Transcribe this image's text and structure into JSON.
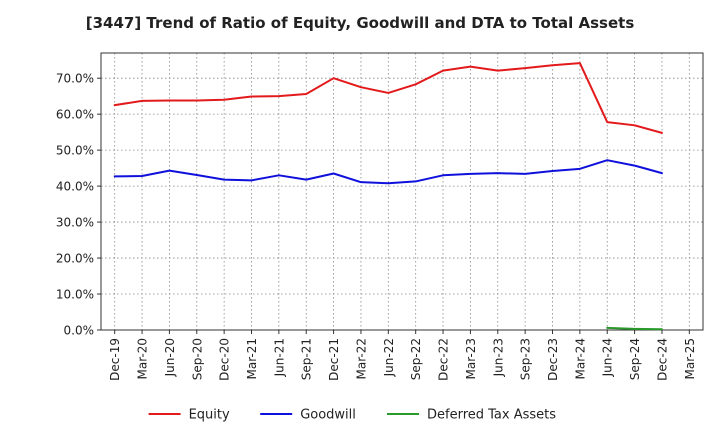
{
  "chart_data": {
    "type": "line",
    "title": "[3447]  Trend of Ratio of Equity, Goodwill and DTA to Total Assets",
    "xlabel": "",
    "ylabel": "",
    "ylim": [
      0,
      77
    ],
    "y_ticks": [
      0,
      10,
      20,
      30,
      40,
      50,
      60,
      70
    ],
    "y_tick_labels": [
      "0.0%",
      "10.0%",
      "20.0%",
      "30.0%",
      "40.0%",
      "50.0%",
      "60.0%",
      "70.0%"
    ],
    "grid": true,
    "legend_position": "bottom",
    "categories": [
      "Dec-19",
      "Mar-20",
      "Jun-20",
      "Sep-20",
      "Dec-20",
      "Mar-21",
      "Jun-21",
      "Sep-21",
      "Dec-21",
      "Mar-22",
      "Jun-22",
      "Sep-22",
      "Dec-22",
      "Mar-23",
      "Jun-23",
      "Sep-23",
      "Dec-23",
      "Mar-24",
      "Jun-24",
      "Sep-24",
      "Dec-24",
      "Mar-25"
    ],
    "series": [
      {
        "name": "Equity",
        "color": "#e31a1c",
        "values": [
          62.5,
          63.7,
          63.8,
          63.8,
          64.0,
          64.9,
          65.0,
          65.6,
          70.0,
          67.5,
          65.9,
          68.3,
          72.1,
          73.2,
          72.1,
          72.8,
          73.6,
          74.2,
          57.8,
          56.9,
          54.8,
          null
        ]
      },
      {
        "name": "Goodwill",
        "color": "#1010dd",
        "values": [
          42.7,
          42.8,
          44.3,
          43.1,
          41.8,
          41.6,
          43.0,
          41.8,
          43.5,
          41.1,
          40.8,
          41.3,
          43.0,
          43.4,
          43.6,
          43.4,
          44.2,
          44.8,
          47.2,
          45.7,
          43.6,
          null
        ]
      },
      {
        "name": "Deferred Tax Assets",
        "color": "#2a9a2a",
        "values": [
          null,
          null,
          null,
          null,
          null,
          null,
          null,
          null,
          null,
          null,
          null,
          null,
          null,
          null,
          null,
          null,
          null,
          null,
          0.6,
          0.3,
          0.2,
          null
        ]
      }
    ]
  }
}
